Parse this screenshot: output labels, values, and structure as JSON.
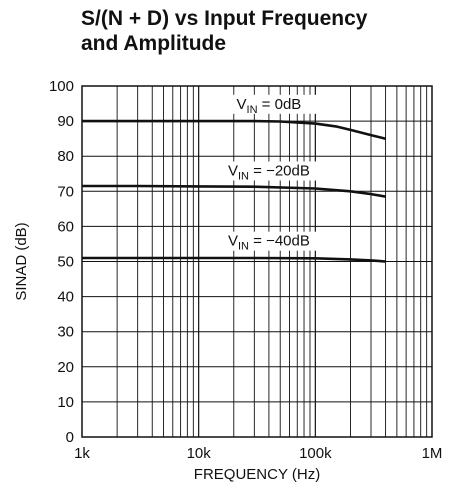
{
  "chart_data": {
    "type": "line",
    "title_lines": [
      "S/(N + D) vs Input Frequency",
      "and Amplitude"
    ],
    "xlabel": "FREQUENCY (Hz)",
    "ylabel": "SINAD (dB)",
    "xscale": "log",
    "xlim": [
      1000,
      1000000
    ],
    "ylim": [
      0,
      100
    ],
    "grid": true,
    "xticks": [
      {
        "value": 1000,
        "label": "1k"
      },
      {
        "value": 10000,
        "label": "10k"
      },
      {
        "value": 100000,
        "label": "100k"
      },
      {
        "value": 1000000,
        "label": "1M"
      }
    ],
    "yticks": [
      {
        "value": 0,
        "label": "0"
      },
      {
        "value": 10,
        "label": "10"
      },
      {
        "value": 20,
        "label": "20"
      },
      {
        "value": 30,
        "label": "30"
      },
      {
        "value": 40,
        "label": "40"
      },
      {
        "value": 50,
        "label": "50"
      },
      {
        "value": 60,
        "label": "60"
      },
      {
        "value": 70,
        "label": "70"
      },
      {
        "value": 80,
        "label": "80"
      },
      {
        "value": 90,
        "label": "90"
      },
      {
        "value": 100,
        "label": "100"
      }
    ],
    "series": [
      {
        "label_main": "V",
        "label_sub": "IN",
        "label_rest": " = 0dB",
        "label_x": 40000,
        "label_y": 93.5,
        "x": [
          1000,
          3000,
          10000,
          30000,
          50000,
          100000,
          150000,
          200000,
          300000,
          400000
        ],
        "y": [
          90,
          90,
          90,
          90,
          89.9,
          89.3,
          88.5,
          87.5,
          86,
          85
        ]
      },
      {
        "label_main": "V",
        "label_sub": "IN",
        "label_rest": " = −20dB",
        "label_x": 40000,
        "label_y": 74.5,
        "x": [
          1000,
          3000,
          10000,
          30000,
          100000,
          200000,
          300000,
          400000
        ],
        "y": [
          71.5,
          71.5,
          71.4,
          71.3,
          70.8,
          70,
          69.2,
          68.5
        ]
      },
      {
        "label_main": "V",
        "label_sub": "IN",
        "label_rest": " = −40dB",
        "label_x": 40000,
        "label_y": 54.5,
        "x": [
          1000,
          3000,
          10000,
          30000,
          100000,
          200000,
          300000,
          400000
        ],
        "y": [
          51,
          51,
          51,
          51,
          50.9,
          50.6,
          50.3,
          50
        ]
      }
    ],
    "colors": {
      "line": "#111111",
      "grid": "#111111",
      "background": "#ffffff"
    }
  }
}
